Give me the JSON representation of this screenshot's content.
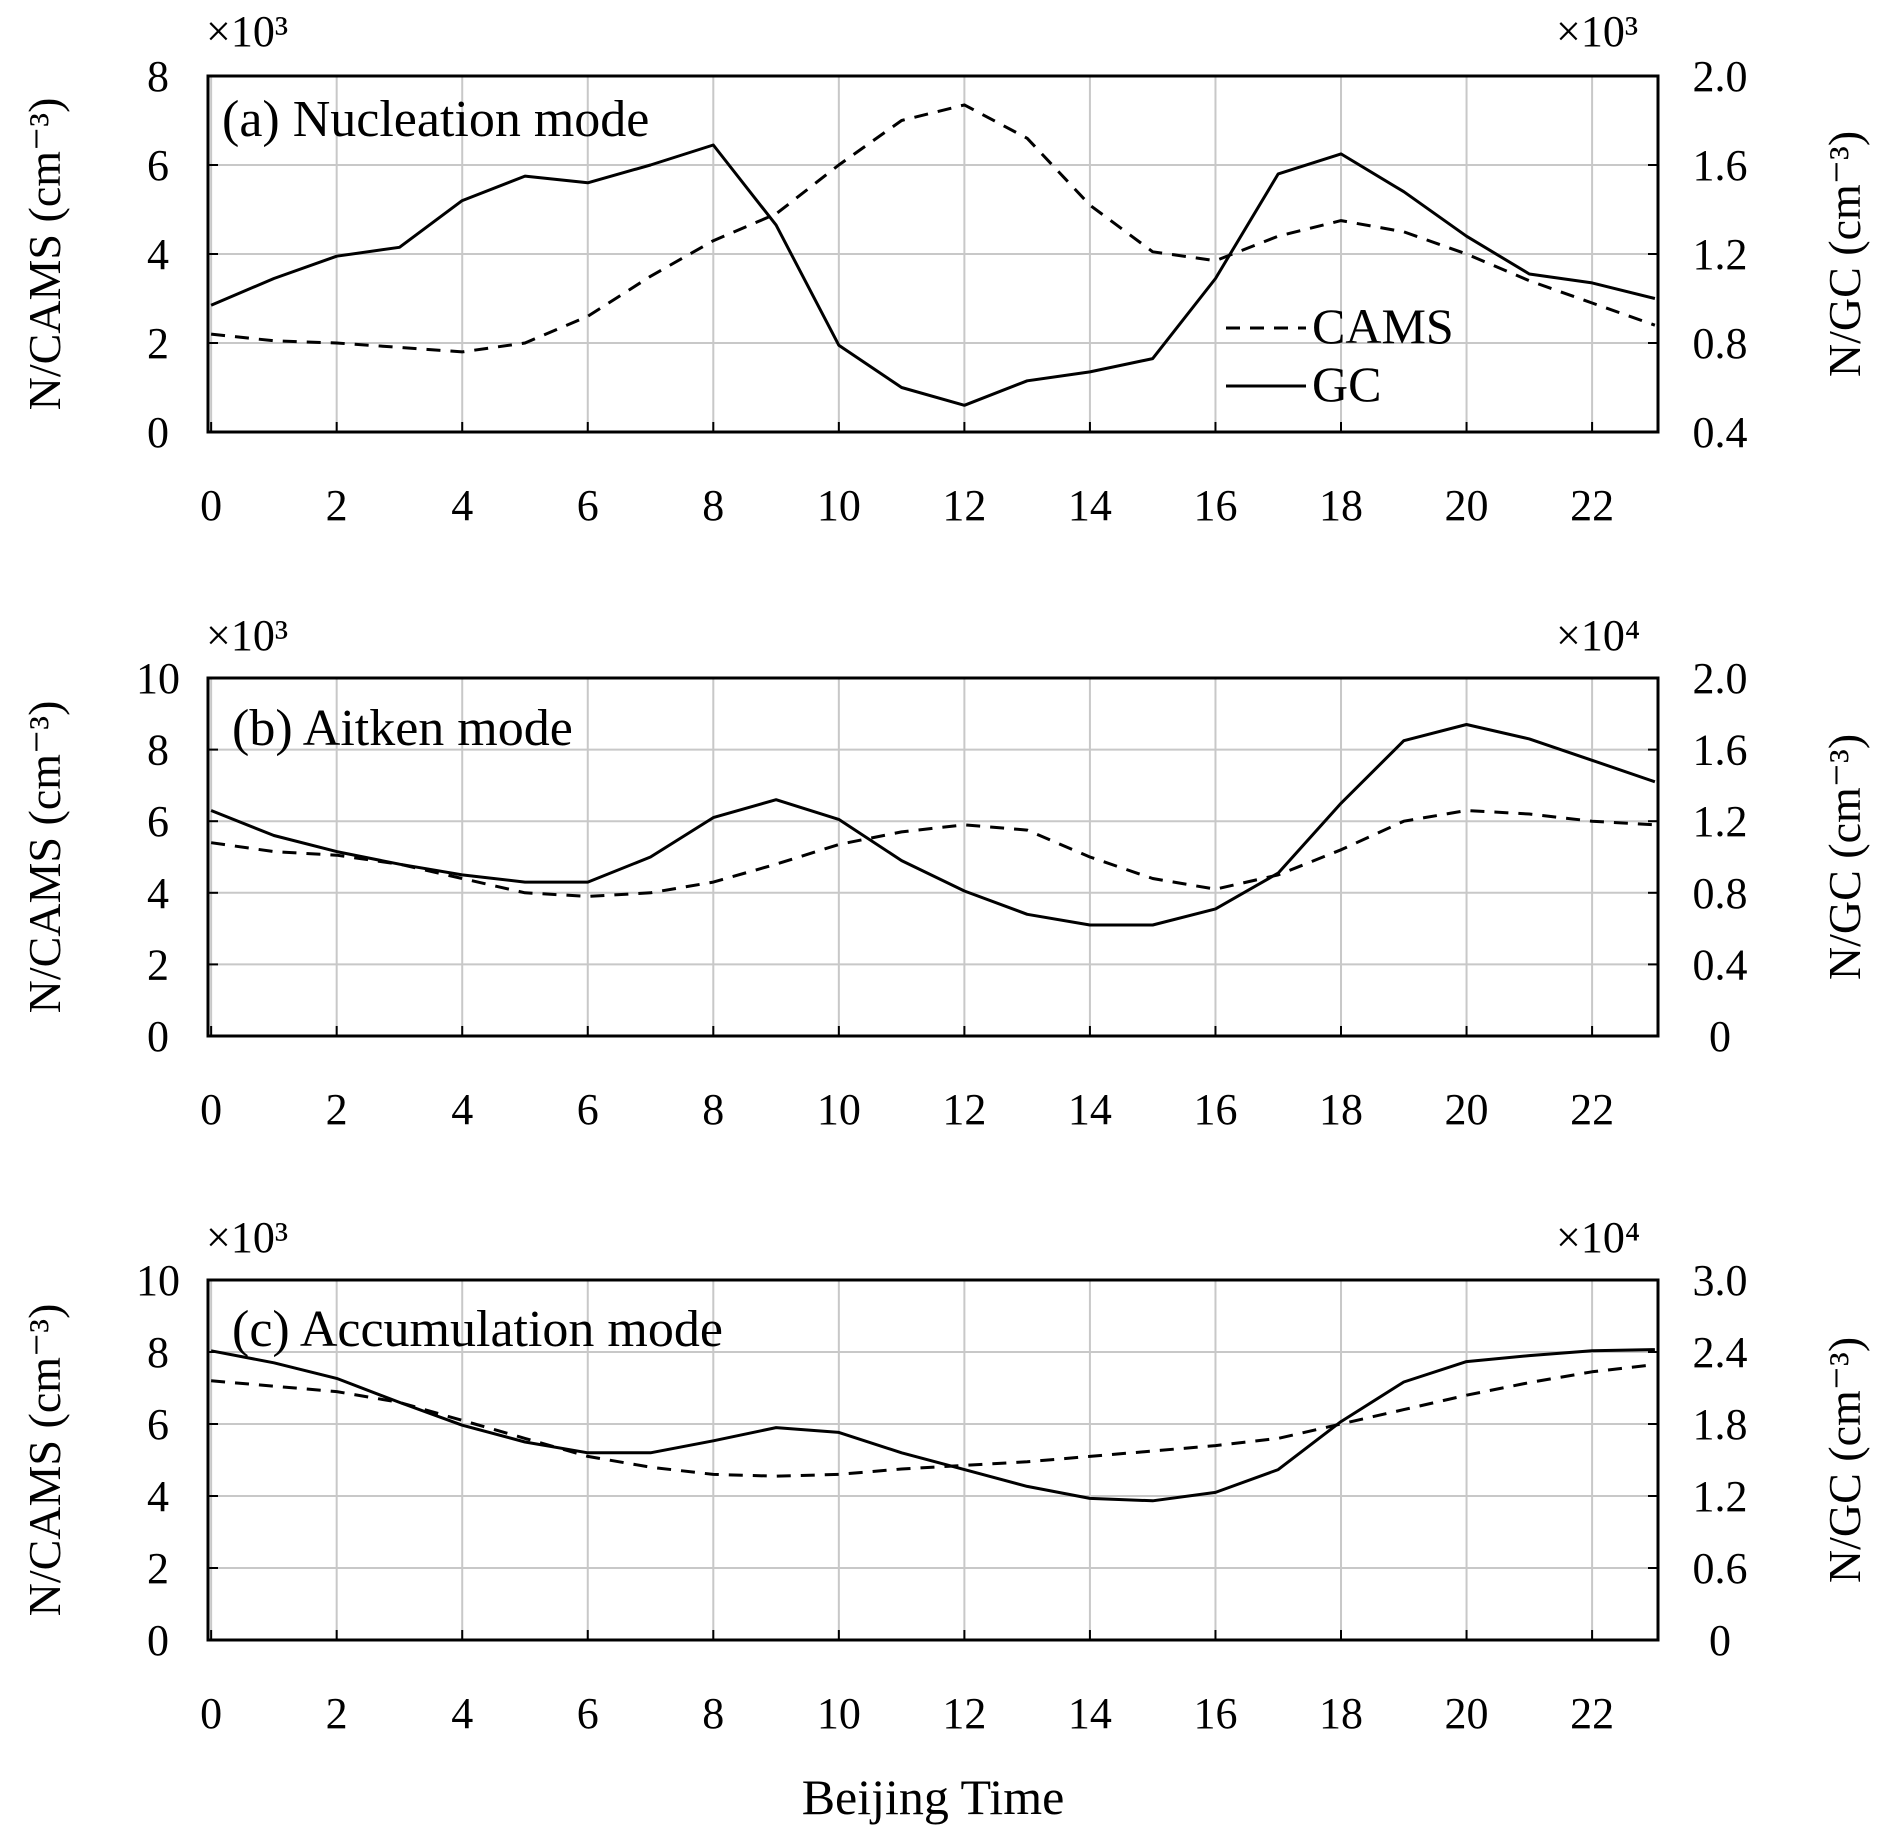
{
  "figure": {
    "xlabel": "Beijing Time",
    "x_ticks": [
      0,
      2,
      4,
      6,
      8,
      10,
      12,
      14,
      16,
      18,
      20,
      22
    ],
    "left_axis_label": "N/CAMS (cm⁻³)",
    "right_axis_label": "N/GC (cm⁻³)",
    "legend": [
      {
        "name": "CAMS",
        "style": "dashed"
      },
      {
        "name": "GC",
        "style": "solid"
      }
    ],
    "line_color": "#000000",
    "grid_color": "#c8c8c8"
  },
  "chart_data": [
    {
      "type": "line",
      "title": "(a) Nucleation mode",
      "x": [
        0,
        1,
        2,
        3,
        4,
        5,
        6,
        7,
        8,
        9,
        10,
        11,
        12,
        13,
        14,
        15,
        16,
        17,
        18,
        19,
        20,
        21,
        22,
        23
      ],
      "xlim": [
        -0.05,
        23.05
      ],
      "left_multiplier": "×10³",
      "right_multiplier": "×10³",
      "ylim_left": [
        0,
        8
      ],
      "ylim_right": [
        0.4,
        2.0
      ],
      "left_ticks": [
        "0",
        "2",
        "4",
        "6",
        "8"
      ],
      "right_ticks": [
        "0.4",
        "0.8",
        "1.2",
        "1.6",
        "2.0"
      ],
      "show_legend": true,
      "series": [
        {
          "name": "CAMS",
          "axis": "left",
          "style": "dashed",
          "values": [
            2.2,
            2.05,
            2.0,
            1.9,
            1.8,
            2.0,
            2.6,
            3.5,
            4.3,
            4.9,
            6.0,
            7.0,
            7.35,
            6.6,
            5.1,
            4.05,
            3.85,
            4.4,
            4.75,
            4.5,
            4.0,
            3.4,
            2.9,
            2.4
          ]
        },
        {
          "name": "GC",
          "axis": "right",
          "style": "solid",
          "values": [
            0.97,
            1.09,
            1.19,
            1.23,
            1.44,
            1.55,
            1.52,
            1.6,
            1.69,
            1.33,
            0.79,
            0.6,
            0.52,
            0.63,
            0.67,
            0.73,
            1.09,
            1.56,
            1.65,
            1.48,
            1.28,
            1.11,
            1.07,
            1.0
          ]
        }
      ]
    },
    {
      "type": "line",
      "title": "(b) Aitken mode",
      "x": [
        0,
        1,
        2,
        3,
        4,
        5,
        6,
        7,
        8,
        9,
        10,
        11,
        12,
        13,
        14,
        15,
        16,
        17,
        18,
        19,
        20,
        21,
        22,
        23
      ],
      "xlim": [
        -0.05,
        23.05
      ],
      "left_multiplier": "×10³",
      "right_multiplier": "×10⁴",
      "ylim_left": [
        0,
        10
      ],
      "ylim_right": [
        0,
        2.0
      ],
      "left_ticks": [
        "0",
        "2",
        "4",
        "6",
        "8",
        "10"
      ],
      "right_ticks": [
        "0",
        "0.4",
        "0.8",
        "1.2",
        "1.6",
        "2.0"
      ],
      "show_legend": false,
      "series": [
        {
          "name": "CAMS",
          "axis": "left",
          "style": "dashed",
          "values": [
            5.4,
            5.15,
            5.05,
            4.8,
            4.4,
            4.0,
            3.9,
            4.0,
            4.3,
            4.8,
            5.35,
            5.7,
            5.9,
            5.75,
            5.0,
            4.4,
            4.1,
            4.5,
            5.2,
            6.0,
            6.3,
            6.2,
            6.0,
            5.9
          ]
        },
        {
          "name": "GC",
          "axis": "right",
          "style": "solid",
          "values": [
            1.26,
            1.12,
            1.03,
            0.96,
            0.9,
            0.86,
            0.86,
            1.0,
            1.22,
            1.32,
            1.21,
            0.98,
            0.81,
            0.68,
            0.62,
            0.62,
            0.71,
            0.91,
            1.3,
            1.65,
            1.74,
            1.66,
            1.54,
            1.42
          ]
        }
      ]
    },
    {
      "type": "line",
      "title": "(c) Accumulation mode",
      "x": [
        0,
        1,
        2,
        3,
        4,
        5,
        6,
        7,
        8,
        9,
        10,
        11,
        12,
        13,
        14,
        15,
        16,
        17,
        18,
        19,
        20,
        21,
        22,
        23
      ],
      "xlim": [
        -0.05,
        23.05
      ],
      "left_multiplier": "×10³",
      "right_multiplier": "×10⁴",
      "ylim_left": [
        0,
        10
      ],
      "ylim_right": [
        0,
        3.0
      ],
      "left_ticks": [
        "0",
        "2",
        "4",
        "6",
        "8",
        "10"
      ],
      "right_ticks": [
        "0",
        "0.6",
        "1.2",
        "1.8",
        "2.4",
        "3.0"
      ],
      "show_legend": false,
      "series": [
        {
          "name": "CAMS",
          "axis": "left",
          "style": "dashed",
          "values": [
            7.2,
            7.05,
            6.9,
            6.6,
            6.1,
            5.6,
            5.1,
            4.8,
            4.6,
            4.55,
            4.6,
            4.75,
            4.85,
            4.95,
            5.1,
            5.25,
            5.4,
            5.6,
            6.0,
            6.4,
            6.8,
            7.15,
            7.45,
            7.65
          ]
        },
        {
          "name": "GC",
          "axis": "right",
          "style": "solid",
          "values": [
            2.41,
            2.31,
            2.18,
            1.98,
            1.79,
            1.65,
            1.56,
            1.56,
            1.66,
            1.77,
            1.73,
            1.56,
            1.42,
            1.28,
            1.18,
            1.16,
            1.23,
            1.42,
            1.82,
            2.15,
            2.32,
            2.37,
            2.41,
            2.42
          ]
        }
      ]
    }
  ]
}
